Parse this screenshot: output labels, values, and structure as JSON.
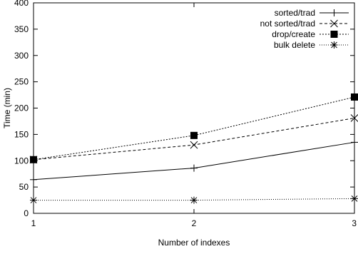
{
  "chart_data": {
    "type": "line",
    "xlabel": "Number of indexes",
    "ylabel": "Time (min)",
    "x": [
      1,
      2,
      3
    ],
    "xlim": [
      1,
      3
    ],
    "ylim": [
      0,
      400
    ],
    "xticks": [
      "1",
      "2",
      "3"
    ],
    "yticks": [
      "0",
      "50",
      "100",
      "150",
      "200",
      "250",
      "300",
      "350",
      "400"
    ],
    "grid": false,
    "legend_position": "top-right",
    "series": [
      {
        "name": "sorted/trad",
        "values": [
          64,
          86,
          135
        ],
        "marker": "plus",
        "dash": "solid"
      },
      {
        "name": "not sorted/trad",
        "values": [
          102,
          130,
          181
        ],
        "marker": "cross",
        "dash": "dashed"
      },
      {
        "name": "drop/create",
        "values": [
          102,
          148,
          221
        ],
        "marker": "square",
        "dash": "dotted"
      },
      {
        "name": "bulk delete",
        "values": [
          25,
          25,
          28
        ],
        "marker": "star",
        "dash": "finedot"
      }
    ]
  }
}
